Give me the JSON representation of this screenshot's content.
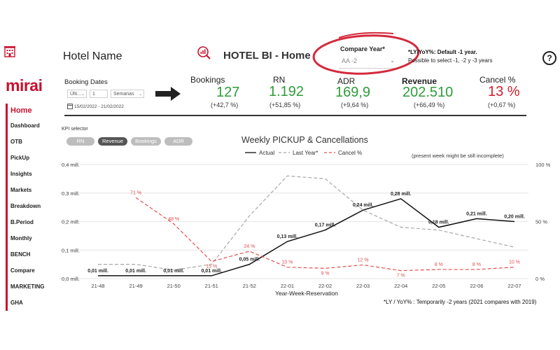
{
  "header": {
    "hotel_name": "Hotel Name",
    "app_title": "HOTEL BI - Home",
    "compare_year_label": "Compare Year*",
    "compare_year_value": "AA -2",
    "ly_note_line1": "*LY/YoY%: Default -1 year.",
    "ly_note_line2": "Possible to select -1, -2 y -3 years",
    "help_symbol": "?"
  },
  "brand": {
    "logo": "mirai",
    "accent_color": "#c8102e"
  },
  "sidebar": {
    "items": [
      {
        "label": "Home",
        "active": true
      },
      {
        "label": "Dashboard"
      },
      {
        "label": "OTB"
      },
      {
        "label": "PickUp"
      },
      {
        "label": "Insights"
      },
      {
        "label": "Markets"
      },
      {
        "label": "Breakdown"
      },
      {
        "label": "B.Period"
      },
      {
        "label": "Monthly"
      },
      {
        "label": "BENCH"
      },
      {
        "label": "Compare"
      },
      {
        "label": "MARKETING"
      },
      {
        "label": "GHA"
      }
    ]
  },
  "booking_dates": {
    "title": "Booking Dates",
    "mode": "Últi...",
    "number": "1",
    "unit": "Semanas",
    "range": "15/02/2022 - 21/02/2022"
  },
  "kpis": [
    {
      "label": "Bookings",
      "value": "127",
      "delta": "(+42,7 %)",
      "color": "#2e9c3a"
    },
    {
      "label": "RN",
      "value": "1.192",
      "delta": "(+51,85 %)",
      "color": "#2e9c3a"
    },
    {
      "label": "ADR",
      "value": "169,9",
      "delta": "(+9,64 %)",
      "color": "#2e9c3a"
    },
    {
      "label": "Revenue",
      "value": "202.510",
      "delta": "(+66,49 %)",
      "color": "#2e9c3a"
    },
    {
      "label": "Cancel %",
      "value": "13 %",
      "delta": "(+0,67 %)",
      "color": "#d01f2e"
    }
  ],
  "kpi_selector": {
    "label": "KPI selector",
    "options": [
      "RN",
      "Revenue",
      "Bookings",
      "ADR"
    ],
    "active": "Revenue"
  },
  "chart_note": "(present week might be still incomplete)",
  "footnote": "*LY / YoY% : Temporarily -2 years (2021 compares with 2019)",
  "chart_data": {
    "type": "line",
    "title": "Weekly PICKUP & Cancellations",
    "xlabel": "Year-Week-Reservation",
    "categories": [
      "21-48",
      "21-49",
      "21-50",
      "21-51",
      "21-52",
      "22-01",
      "22-02",
      "22-03",
      "22-04",
      "22-05",
      "22-06",
      "22-07"
    ],
    "y_left": {
      "ticks": [
        "0,0 mill.",
        "0,1 mill.",
        "0,2 mill.",
        "0,3 mill.",
        "0,4 mill."
      ],
      "range": [
        0,
        0.4
      ]
    },
    "y_right": {
      "ticks": [
        "0 %",
        "50 %",
        "100 %"
      ],
      "range": [
        0,
        100
      ]
    },
    "legend": [
      "Actual",
      "Last Year*",
      "Cancel %"
    ],
    "series": [
      {
        "name": "Actual",
        "axis": "left",
        "color": "#111111",
        "style": "solid",
        "values": [
          0.01,
          0.01,
          0.01,
          0.01,
          0.05,
          0.13,
          0.17,
          0.24,
          0.28,
          0.18,
          0.21,
          0.2
        ],
        "labels": [
          "0,01 mill.",
          "0,01 mill.",
          "0,01 mill.",
          "0,01 mill.",
          "0,05 mill.",
          "0,13 mill.",
          "0,17 mill.",
          "0,24 mill.",
          "0,28 mill.",
          "0,18 mill.",
          "0,21 mill.",
          "0,20 mill."
        ]
      },
      {
        "name": "Last Year*",
        "axis": "left",
        "color": "#a8a8a8",
        "style": "dashed",
        "values": [
          0.05,
          0.05,
          0.03,
          0.05,
          0.22,
          0.36,
          0.35,
          0.24,
          0.18,
          0.17,
          0.14,
          0.11
        ]
      },
      {
        "name": "Cancel %",
        "axis": "right",
        "color": "#e05050",
        "style": "dashed",
        "values": [
          null,
          71,
          48,
          15,
          24,
          10,
          9,
          12,
          7,
          8,
          8,
          10
        ],
        "labels": [
          null,
          "71 %",
          "48 %",
          "15 %",
          "24 %",
          "10 %",
          "9 %",
          "12 %",
          "7 %",
          "8 %",
          "8 %",
          "10 %"
        ]
      }
    ]
  }
}
